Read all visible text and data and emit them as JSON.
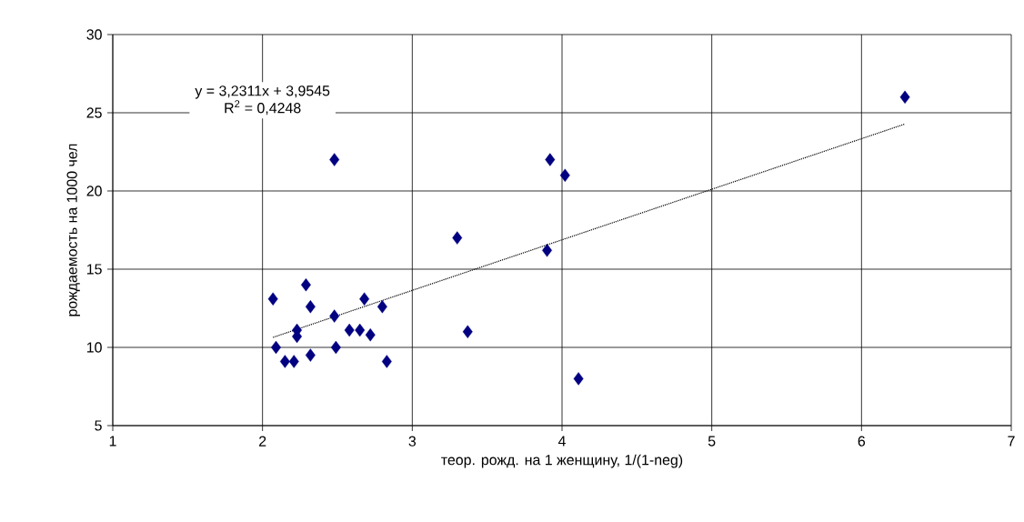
{
  "chart_data": {
    "type": "scatter",
    "xlabel": "теор. рожд. на 1 женщину, 1/(1-neg)",
    "ylabel": "рождаемость на 1000 чел",
    "xlim": [
      1,
      7
    ],
    "xticks": [
      1,
      2,
      3,
      4,
      5,
      6,
      7
    ],
    "ylim": [
      5,
      30
    ],
    "yticks": [
      5,
      10,
      15,
      20,
      25,
      30
    ],
    "grid": true,
    "marker": "diamond",
    "series": [
      {
        "color": "#000080",
        "x": [
          2.07,
          2.29,
          2.32,
          2.23,
          2.23,
          2.09,
          2.15,
          2.21,
          2.32,
          2.48,
          2.49,
          2.58,
          2.65,
          2.68,
          2.72,
          2.8,
          2.83,
          2.48,
          3.3,
          3.37,
          3.9,
          3.92,
          4.02,
          4.11,
          6.29
        ],
        "values": [
          13.1,
          14.0,
          12.6,
          11.1,
          10.7,
          10.0,
          9.1,
          9.1,
          9.5,
          12.0,
          10.0,
          11.1,
          11.1,
          13.1,
          10.8,
          12.6,
          9.1,
          22.0,
          17.0,
          11.0,
          16.2,
          22.0,
          21.0,
          8.0,
          26.0
        ]
      },
      {
        "type": "line",
        "color": "#000000",
        "line_style": "dotted",
        "marker": "none",
        "x": [
          2.07,
          6.29
        ],
        "values": [
          10.64,
          24.28
        ]
      }
    ],
    "annotations": [
      "y = 3,2311x + 3,9545",
      "R$^{2}$ = 0,4248"
    ]
  }
}
